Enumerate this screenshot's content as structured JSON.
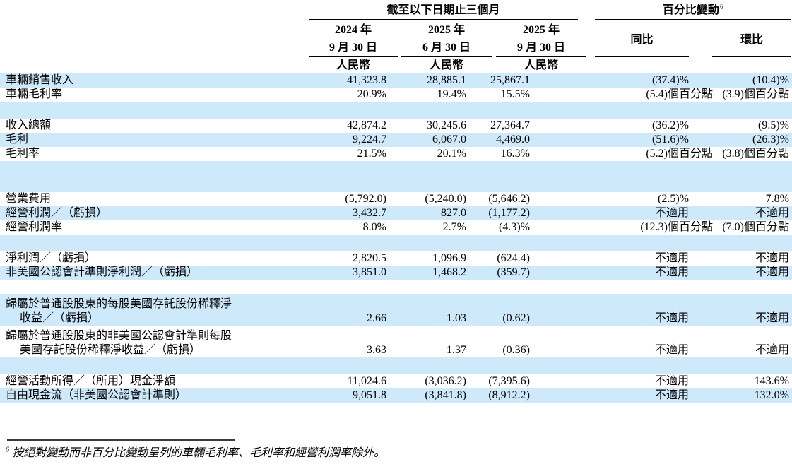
{
  "header": {
    "period_group_label": "截至以下日期止三個月",
    "change_group_label": "百分比變動",
    "change_group_footnote_ref": "6",
    "date_columns": [
      {
        "year_line": "2024 年",
        "day_line": "9 月 30 日",
        "currency_label": "人民幣"
      },
      {
        "year_line": "2025 年",
        "day_line": "6 月 30 日",
        "currency_label": "人民幣"
      },
      {
        "year_line": "2025 年",
        "day_line": "9 月 30 日",
        "currency_label": "人民幣"
      }
    ],
    "yoy_label": "同比",
    "qoq_label": "環比"
  },
  "rows": [
    {
      "type": "data",
      "highlight": true,
      "label": "車輛銷售收入",
      "values": [
        "41,323.8",
        "28,885.1",
        "25,867.1"
      ],
      "yoy": "(37.4)%",
      "qoq": "(10.4)%"
    },
    {
      "type": "data",
      "highlight": false,
      "label": "車輛毛利率",
      "values": [
        "20.9%",
        "19.4%",
        "15.5%"
      ],
      "yoy": "(5.4)個百分點",
      "qoq": "(3.9)個百分點"
    },
    {
      "type": "spacer",
      "highlight": true
    },
    {
      "type": "data",
      "highlight": false,
      "label": "收入總額",
      "values": [
        "42,874.2",
        "30,245.6",
        "27,364.7"
      ],
      "yoy": "(36.2)%",
      "qoq": "(9.5)%"
    },
    {
      "type": "data",
      "highlight": true,
      "label": "毛利",
      "values": [
        "9,224.7",
        "6,067.0",
        "4,469.0"
      ],
      "yoy": "(51.6)%",
      "qoq": "(26.3)%"
    },
    {
      "type": "data",
      "highlight": false,
      "label": "毛利率",
      "values": [
        "21.5%",
        "20.1%",
        "16.3%"
      ],
      "yoy": "(5.2)個百分點",
      "qoq": "(3.8)個百分點"
    },
    {
      "type": "spacer_lg",
      "highlight": true
    },
    {
      "type": "data",
      "highlight": false,
      "label": "營業費用",
      "values": [
        "(5,792.0)",
        "(5,240.0)",
        "(5,646.2)"
      ],
      "yoy": "(2.5)%",
      "qoq": "7.8%"
    },
    {
      "type": "data",
      "highlight": true,
      "label": "經營利潤／（虧損）",
      "values": [
        "3,432.7",
        "827.0",
        "(1,177.2)"
      ],
      "yoy": "不適用",
      "qoq": "不適用"
    },
    {
      "type": "data",
      "highlight": false,
      "label": "經營利潤率",
      "values": [
        "8.0%",
        "2.7%",
        "(4.3)%"
      ],
      "yoy": "(12.3)個百分點",
      "qoq": "(7.0)個百分點"
    },
    {
      "type": "spacer",
      "highlight": true
    },
    {
      "type": "data",
      "highlight": false,
      "label": "淨利潤／（虧損）",
      "values": [
        "2,820.5",
        "1,096.9",
        "(624.4)"
      ],
      "yoy": "不適用",
      "qoq": "不適用"
    },
    {
      "type": "data",
      "highlight": true,
      "label": "非美國公認會計準則淨利潤／（虧損）",
      "values": [
        "3,851.0",
        "1,468.2",
        "(359.7)"
      ],
      "yoy": "不適用",
      "qoq": "不適用"
    },
    {
      "type": "spacer_sm",
      "highlight": false
    },
    {
      "type": "data2",
      "highlight": true,
      "label_lines": [
        "歸屬於普通股股東的每股美國存託股份稀釋淨",
        "收益／（虧損）"
      ],
      "values": [
        "2.66",
        "1.03",
        "(0.62)"
      ],
      "yoy": "不適用",
      "qoq": "不適用"
    },
    {
      "type": "data2",
      "highlight": false,
      "label_lines": [
        "歸屬於普通股股東的非美國公認會計準則每股",
        "美國存託股份稀釋淨收益／（虧損）"
      ],
      "values": [
        "3.63",
        "1.37",
        "(0.36)"
      ],
      "yoy": "不適用",
      "qoq": "不適用"
    },
    {
      "type": "spacer",
      "highlight": true
    },
    {
      "type": "data",
      "highlight": false,
      "label": "經營活動所得／（所用）現金淨額",
      "values": [
        "11,024.6",
        "(3,036.2)",
        "(7,395.6)"
      ],
      "yoy": "不適用",
      "qoq": "143.6%"
    },
    {
      "type": "data",
      "highlight": true,
      "label": "自由現金流（非美國公認會計準則）",
      "values": [
        "9,051.8",
        "(3,841.8)",
        "(8,912.2)"
      ],
      "yoy": "不適用",
      "qoq": "132.0%"
    }
  ],
  "footnote": {
    "ref": "6",
    "text": "按絕對變動而非百分比變動呈列的車輛毛利率、毛利率和經營利潤率除外。"
  },
  "colors": {
    "row_highlight": "#CDE9FA",
    "rule": "#000000"
  }
}
